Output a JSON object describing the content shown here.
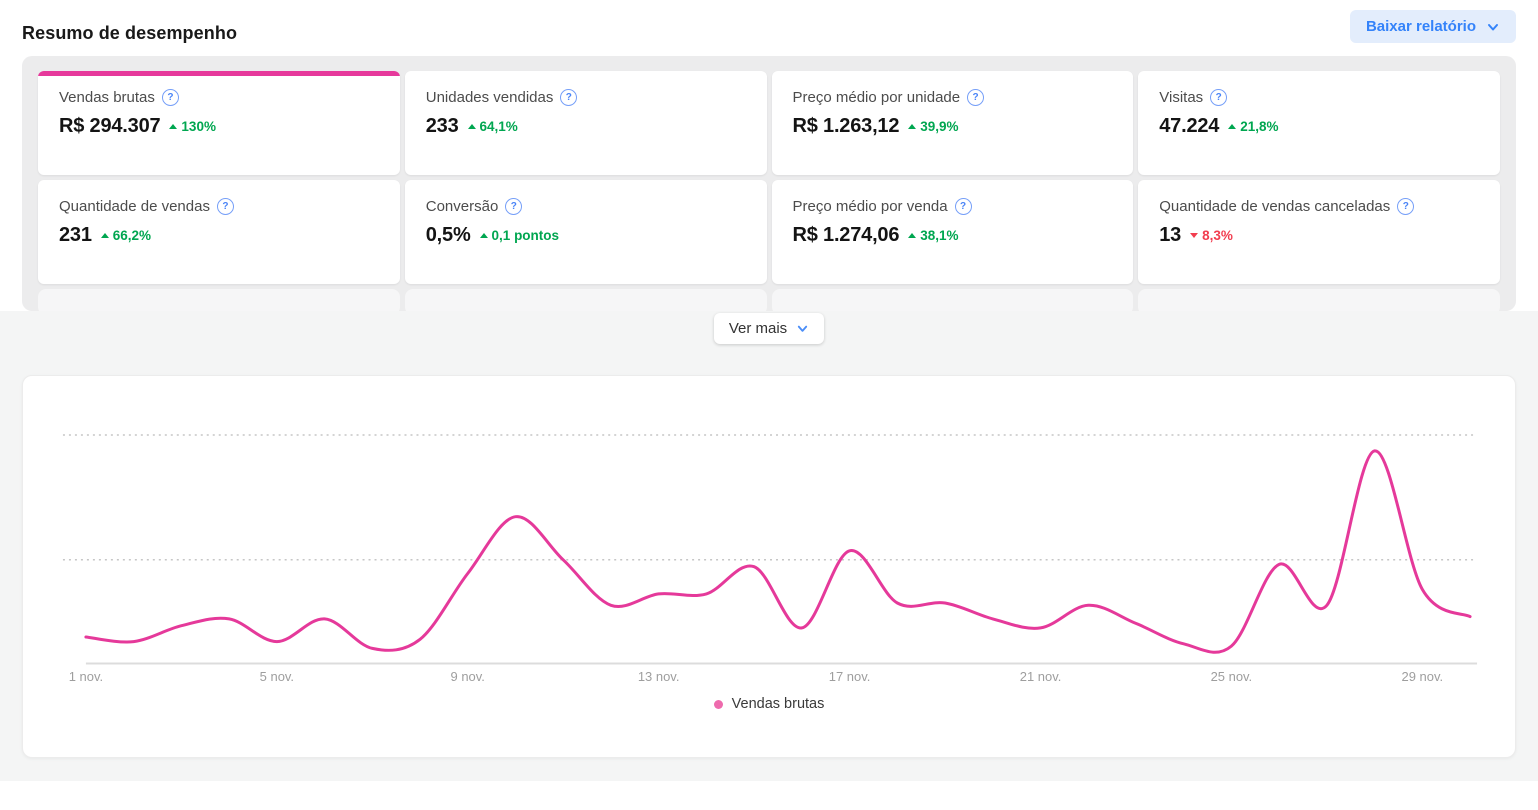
{
  "header": {
    "title": "Resumo de desempenho",
    "download_button_label": "Baixar relatório"
  },
  "metrics": [
    {
      "label": "Vendas brutas",
      "value": "R$ 294.307",
      "delta": "130%",
      "trend": "up",
      "selected": true,
      "help_icon": "question-circle"
    },
    {
      "label": "Unidades vendidas",
      "value": "233",
      "delta": "64,1%",
      "trend": "up",
      "selected": false,
      "help_icon": "question-circle"
    },
    {
      "label": "Preço médio por unidade",
      "value": "R$ 1.263,12",
      "delta": "39,9%",
      "trend": "up",
      "selected": false,
      "help_icon": "question-circle"
    },
    {
      "label": "Visitas",
      "value": "47.224",
      "delta": "21,8%",
      "trend": "up",
      "selected": false,
      "help_icon": "question-circle"
    },
    {
      "label": "Quantidade de vendas",
      "value": "231",
      "delta": "66,2%",
      "trend": "up",
      "selected": false,
      "help_icon": "question-circle"
    },
    {
      "label": "Conversão",
      "value": "0,5%",
      "delta": "0,1 pontos",
      "trend": "up",
      "selected": false,
      "help_icon": "question-circle"
    },
    {
      "label": "Preço médio por venda",
      "value": "R$ 1.274,06",
      "delta": "38,1%",
      "trend": "up",
      "selected": false,
      "help_icon": "question-circle"
    },
    {
      "label": "Quantidade de vendas canceladas",
      "value": "13",
      "delta": "8,3%",
      "trend": "down",
      "selected": false,
      "help_icon": "question-circle"
    }
  ],
  "ver_mais_label": "Ver mais",
  "chart_data": {
    "type": "line",
    "title": "",
    "x_unit": "day of November",
    "x": [
      1,
      2,
      3,
      4,
      5,
      6,
      7,
      8,
      9,
      10,
      11,
      12,
      13,
      14,
      15,
      16,
      17,
      18,
      19,
      20,
      21,
      22,
      23,
      24,
      25,
      26,
      27,
      28,
      29,
      30
    ],
    "x_tick_labels": [
      "1 nov.",
      "5 nov.",
      "9 nov.",
      "13 nov.",
      "17 nov.",
      "21 nov.",
      "25 nov.",
      "29 nov."
    ],
    "x_tick_indices": [
      0,
      4,
      8,
      12,
      16,
      20,
      24,
      28
    ],
    "series": [
      {
        "name": "Vendas brutas",
        "color": "#e5399a",
        "values": [
          11,
          9,
          16,
          19,
          9,
          19,
          6,
          10,
          39,
          64,
          45,
          25,
          30,
          30,
          42,
          15,
          49,
          26,
          26,
          19,
          15,
          25,
          17,
          8,
          7,
          43,
          25,
          93,
          32,
          20
        ]
      }
    ],
    "value_units": "relative scale (no y-axis labels shown in chart)",
    "ylim": [
      0,
      112
    ],
    "gridlines": {
      "style": "dashed",
      "values": [
        45,
        100
      ]
    },
    "legend": {
      "label": "Vendas brutas",
      "position": "bottom-center",
      "marker_color": "#ee6bad"
    }
  },
  "colors": {
    "accent_pink": "#e6399b",
    "chart_line_pink": "#e5399a",
    "brand_blue": "#3483fa",
    "positive_green": "#00a650",
    "negative_red": "#f23d4f",
    "panel_gray": "#ececed",
    "section_gray": "#f4f5f5"
  }
}
